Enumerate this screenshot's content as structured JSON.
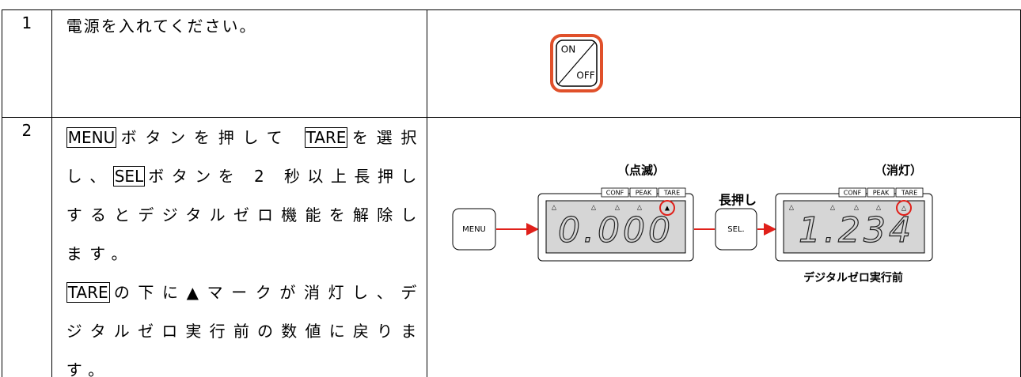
{
  "table": {
    "rows": [
      {
        "number": "1",
        "text": "電源を入れてください。",
        "diagram": {
          "on": "ON",
          "off": "OFF"
        }
      },
      {
        "number": "2",
        "text_parts": [
          "MENU",
          "ボタンを押して",
          "TARE",
          "を選択し、",
          "SEL",
          "ボタンを 2 秒以上長押しするとデジタルゼロ機能を解除します。",
          "TARE",
          "の下に▲マークが消灯し、デジタルゼロ実行前の数値に戻ります。"
        ],
        "diagram": {
          "menu_button": "MENU",
          "blink_note": "（点滅）",
          "display_tabs": [
            "CONF",
            "PEAK",
            "TARE"
          ],
          "display_before": "0.000",
          "long_press": "長押し",
          "sel_button": "SEL.",
          "off_note": "（消灯）",
          "display_after": "1.234",
          "caption": "デジタルゼロ実行前"
        }
      }
    ]
  }
}
